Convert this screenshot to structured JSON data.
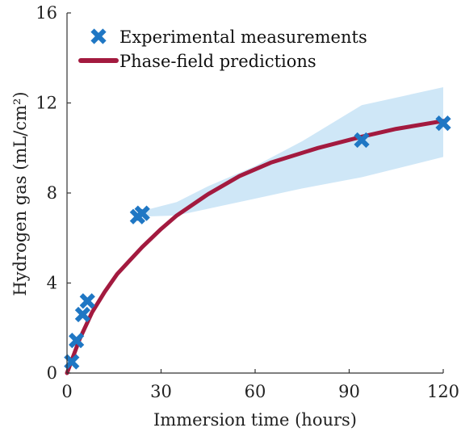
{
  "chart_data": {
    "type": "line",
    "xlabel": "Immersion time (hours)",
    "ylabel": "Hydrogen gas (mL/cm²)",
    "xlim": [
      0,
      120
    ],
    "ylim": [
      0,
      16
    ],
    "xticks": [
      0,
      30,
      60,
      90,
      120
    ],
    "yticks": [
      0,
      4,
      8,
      12,
      16
    ],
    "grid": false,
    "legend_position": "top-left",
    "series": [
      {
        "name": "Experimental measurements",
        "kind": "scatter",
        "marker": "x",
        "color": "#1f77c4",
        "x": [
          1.5,
          3,
          5,
          6.5,
          22.5,
          24,
          94,
          120
        ],
        "y": [
          0.5,
          1.45,
          2.6,
          3.2,
          6.95,
          7.1,
          10.35,
          11.1
        ]
      },
      {
        "name": "Phase-field predictions",
        "kind": "line",
        "color": "#a31a3f",
        "x": [
          0,
          4,
          8,
          12,
          16,
          20,
          24,
          30,
          35,
          45,
          55,
          65,
          80,
          94,
          105,
          120
        ],
        "y": [
          0,
          1.5,
          2.7,
          3.6,
          4.4,
          5.0,
          5.6,
          6.4,
          7.0,
          7.95,
          8.75,
          9.35,
          10.0,
          10.5,
          10.85,
          11.2
        ]
      }
    ],
    "band": {
      "color": "#cfe7f7",
      "x": [
        1.5,
        3,
        5,
        6.5,
        22.5,
        24,
        35,
        45,
        60,
        75,
        94,
        120
      ],
      "upper": [
        0.5,
        1.45,
        2.6,
        3.2,
        6.95,
        7.2,
        7.6,
        8.3,
        9.2,
        10.3,
        11.9,
        12.7
      ],
      "lower": [
        0.5,
        1.45,
        2.6,
        3.2,
        6.95,
        6.95,
        7.0,
        7.3,
        7.75,
        8.2,
        8.7,
        9.6
      ]
    }
  }
}
